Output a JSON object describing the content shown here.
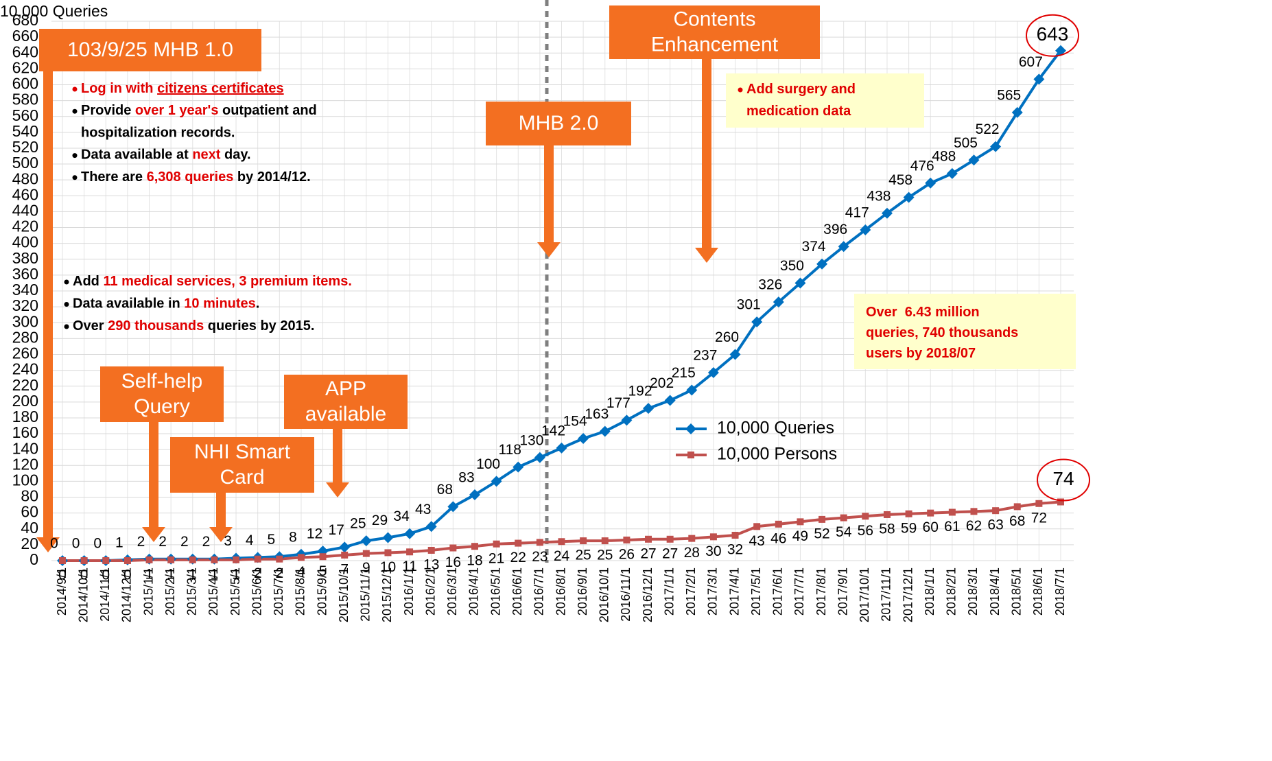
{
  "chart_data": {
    "type": "line",
    "y_label": "10,000 Queries",
    "categories": [
      "2014/9/1",
      "2014/10/1",
      "2014/11/1",
      "2014/12/1",
      "2015/1/1",
      "2015/2/1",
      "2015/3/1",
      "2015/4/1",
      "2015/5/1",
      "2015/6/1",
      "2015/7/1",
      "2015/8/1",
      "2015/9/1",
      "2015/10/1",
      "2015/11/1",
      "2015/12/1",
      "2016/1/1",
      "2016/2/1",
      "2016/3/1",
      "2016/4/1",
      "2016/5/1",
      "2016/6/1",
      "2016/7/1",
      "2016/8/1",
      "2016/9/1",
      "2016/10/1",
      "2016/11/1",
      "2016/12/1",
      "2017/1/1",
      "2017/2/1",
      "2017/3/1",
      "2017/4/1",
      "2017/5/1",
      "2017/6/1",
      "2017/7/1",
      "2017/8/1",
      "2017/9/1",
      "2017/10/1",
      "2017/11/1",
      "2017/12/1",
      "2018/1/1",
      "2018/2/1",
      "2018/3/1",
      "2018/4/1",
      "2018/5/1",
      "2018/6/1",
      "2018/7/1"
    ],
    "series": [
      {
        "name": "10,000 Queries",
        "color": "#0070c0",
        "marker": "diamond",
        "values": [
          0,
          0,
          0,
          1,
          2,
          2,
          2,
          2,
          3,
          4,
          5,
          8,
          12,
          17,
          25,
          29,
          34,
          43,
          68,
          83,
          100,
          118,
          130,
          142,
          154,
          163,
          177,
          192,
          202,
          215,
          237,
          260,
          301,
          326,
          350,
          374,
          396,
          417,
          438,
          458,
          476,
          488,
          505,
          522,
          565,
          607,
          643
        ]
      },
      {
        "name": "10,000 Persons",
        "color": "#c0504d",
        "marker": "square",
        "values": [
          0,
          0,
          0,
          0,
          1,
          1,
          1,
          1,
          1,
          2,
          2,
          4,
          5,
          7,
          9,
          10,
          11,
          13,
          16,
          18,
          21,
          22,
          23,
          24,
          25,
          25,
          26,
          27,
          27,
          28,
          30,
          32,
          43,
          46,
          49,
          52,
          54,
          56,
          58,
          59,
          60,
          61,
          62,
          63,
          68,
          72,
          74
        ]
      }
    ],
    "ylim": [
      0,
      680
    ],
    "yticks": [
      0,
      20,
      40,
      60,
      80,
      100,
      120,
      140,
      160,
      180,
      200,
      220,
      240,
      260,
      280,
      300,
      320,
      340,
      360,
      380,
      400,
      420,
      440,
      460,
      480,
      500,
      520,
      540,
      560,
      580,
      600,
      620,
      640,
      660,
      680
    ],
    "grid": true
  },
  "annotations": {
    "callouts": [
      {
        "lines": [
          "103/9/25 MHB 1.0"
        ]
      },
      {
        "lines": [
          "Contents",
          "Enhancement"
        ]
      },
      {
        "lines": [
          "MHB 2.0"
        ]
      },
      {
        "lines": [
          "Self-help",
          "Query"
        ]
      },
      {
        "lines": [
          "NHI Smart",
          "Card"
        ]
      },
      {
        "lines": [
          "APP",
          "available"
        ]
      }
    ],
    "notes": [
      {
        "items": [
          {
            "bullet": true,
            "lines": [
              [
                {
                  "text": "Log in with ",
                  "color": "#e00000"
                },
                {
                  "text": "citizens certificates",
                  "color": "#e00000",
                  "underline": true
                }
              ]
            ]
          },
          {
            "bullet": true,
            "lines": [
              [
                {
                  "text": "Provide "
                },
                {
                  "text": "over 1 year's",
                  "color": "#e00000"
                },
                {
                  "text": " outpatient and"
                }
              ],
              [
                {
                  "text": "hospitalization records."
                }
              ]
            ]
          },
          {
            "bullet": true,
            "lines": [
              [
                {
                  "text": "Data available at "
                },
                {
                  "text": "next",
                  "color": "#e00000"
                },
                {
                  "text": " day."
                }
              ]
            ]
          },
          {
            "bullet": true,
            "lines": [
              [
                {
                  "text": "There are "
                },
                {
                  "text": "6,308 queries",
                  "color": "#e00000"
                },
                {
                  "text": " by 2014/12."
                }
              ]
            ]
          }
        ]
      },
      {
        "items": [
          {
            "bullet": true,
            "lines": [
              [
                {
                  "text": "Add "
                },
                {
                  "text": "11 medical services, 3 premium items.",
                  "color": "#e00000"
                }
              ]
            ]
          },
          {
            "bullet": true,
            "lines": [
              [
                {
                  "text": "Data available in "
                },
                {
                  "text": "10 minutes",
                  "color": "#e00000"
                },
                {
                  "text": "."
                }
              ]
            ]
          },
          {
            "bullet": true,
            "lines": [
              [
                {
                  "text": "Over "
                },
                {
                  "text": "290 thousands",
                  "color": "#e00000"
                },
                {
                  "text": " queries by 2015."
                }
              ]
            ]
          }
        ]
      },
      {
        "background": "#ffffcc",
        "items": [
          {
            "bullet": true,
            "lines": [
              [
                {
                  "text": "Add surgery and",
                  "color": "#e00000"
                }
              ],
              [
                {
                  "text": "medication data",
                  "color": "#e00000"
                }
              ]
            ]
          }
        ]
      },
      {
        "background": "#ffffcc",
        "items": [
          {
            "bullet": false,
            "lines": [
              [
                {
                  "text": "Over  6.43 million",
                  "color": "#e00000"
                }
              ],
              [
                {
                  "text": "queries, 740 thousands",
                  "color": "#e00000"
                }
              ],
              [
                {
                  "text": "users by 2018/07",
                  "color": "#e00000"
                }
              ]
            ]
          }
        ]
      }
    ]
  }
}
